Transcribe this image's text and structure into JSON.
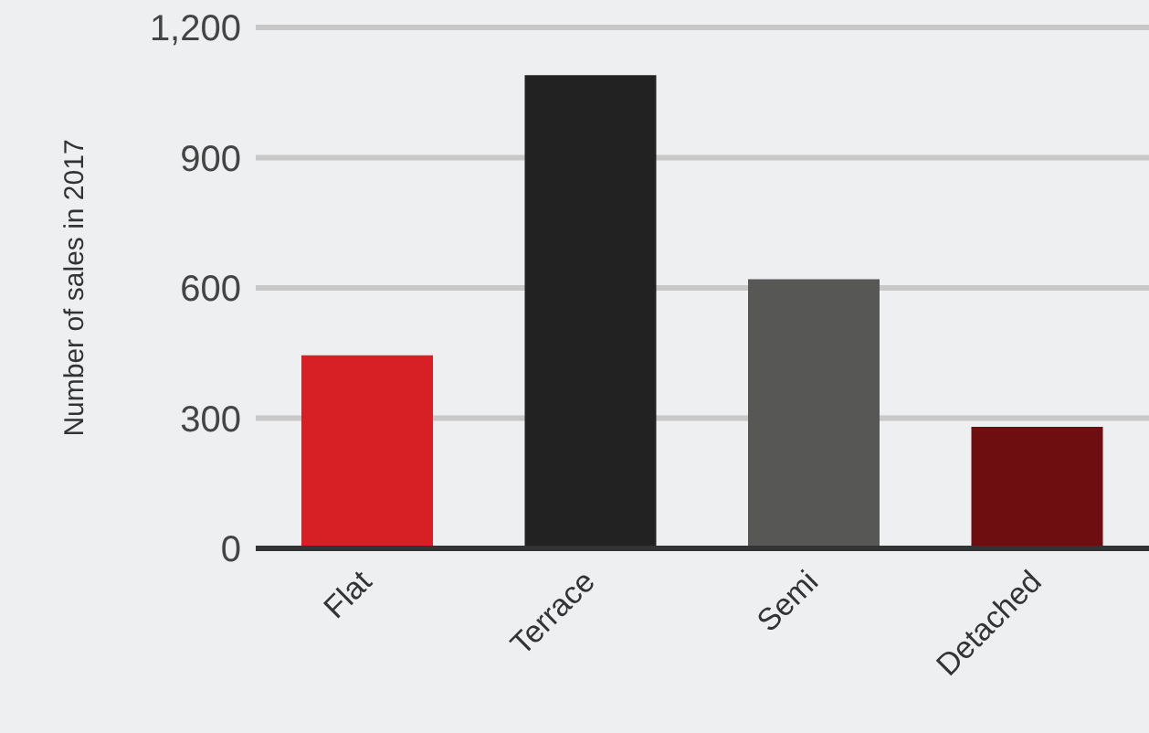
{
  "chart_data": {
    "type": "bar",
    "ylabel": "Number of sales in 2017",
    "categories": [
      "Flat",
      "Terrace",
      "Semi",
      "Detached"
    ],
    "values": [
      445,
      1090,
      620,
      280
    ],
    "colors": [
      "#d71f26",
      "#222222",
      "#575755",
      "#6e0e10"
    ],
    "ylim": [
      0,
      1200
    ],
    "yticks": [
      0,
      {
        "value": 300,
        "label": "300"
      },
      {
        "value": 600,
        "label": "600"
      },
      {
        "value": 900,
        "label": "900"
      },
      {
        "value": 1200,
        "label": "1,200"
      }
    ],
    "grid": "y"
  }
}
